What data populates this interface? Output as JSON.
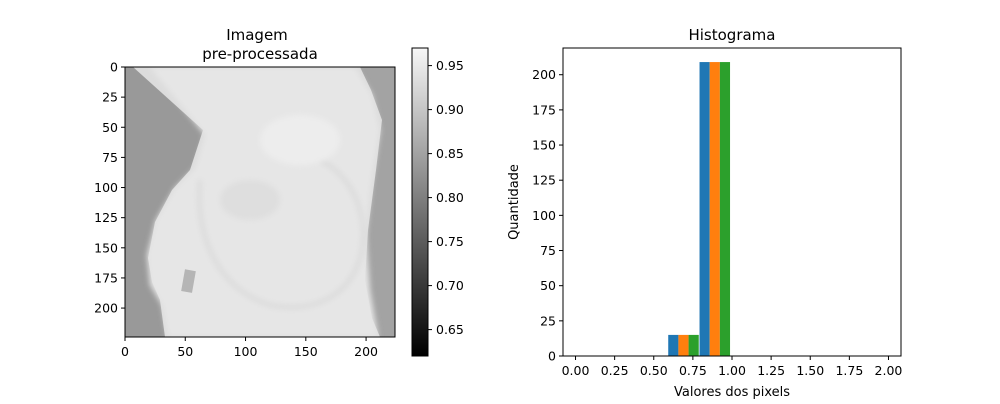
{
  "chart_data": [
    {
      "type": "heatmap",
      "title_lines": [
        "Imagem",
        "pre-processada"
      ],
      "xticks": [
        0,
        50,
        100,
        150,
        200
      ],
      "yticks": [
        0,
        25,
        50,
        75,
        100,
        125,
        150,
        175,
        200
      ],
      "xlim": [
        0,
        224
      ],
      "ylim": [
        224,
        0
      ],
      "colorbar": {
        "ticks": [
          "0.65",
          "0.70",
          "0.75",
          "0.80",
          "0.85",
          "0.90",
          "0.95"
        ],
        "range": [
          0.62,
          0.97
        ],
        "colormap": "gray"
      }
    },
    {
      "type": "bar",
      "title": "Histograma",
      "xlabel": "Valores dos pixels",
      "ylabel": "Quantidade",
      "xlim": [
        -0.08,
        2.08
      ],
      "ylim": [
        0,
        219
      ],
      "xticks": [
        "0.00",
        "0.25",
        "0.50",
        "0.75",
        "1.00",
        "1.25",
        "1.50",
        "1.75",
        "2.00"
      ],
      "yticks": [
        "0",
        "25",
        "50",
        "75",
        "100",
        "125",
        "150",
        "175",
        "200"
      ],
      "bar_width": 0.065,
      "series": [
        {
          "color": "#1f77b4",
          "bars": [
            {
              "x": 0.625,
              "value": 15
            },
            {
              "x": 0.825,
              "value": 209
            }
          ]
        },
        {
          "color": "#ff7f0e",
          "bars": [
            {
              "x": 0.69,
              "value": 15
            },
            {
              "x": 0.89,
              "value": 209
            }
          ]
        },
        {
          "color": "#2ca02c",
          "bars": [
            {
              "x": 0.755,
              "value": 15
            },
            {
              "x": 0.955,
              "value": 209
            }
          ]
        }
      ]
    }
  ]
}
